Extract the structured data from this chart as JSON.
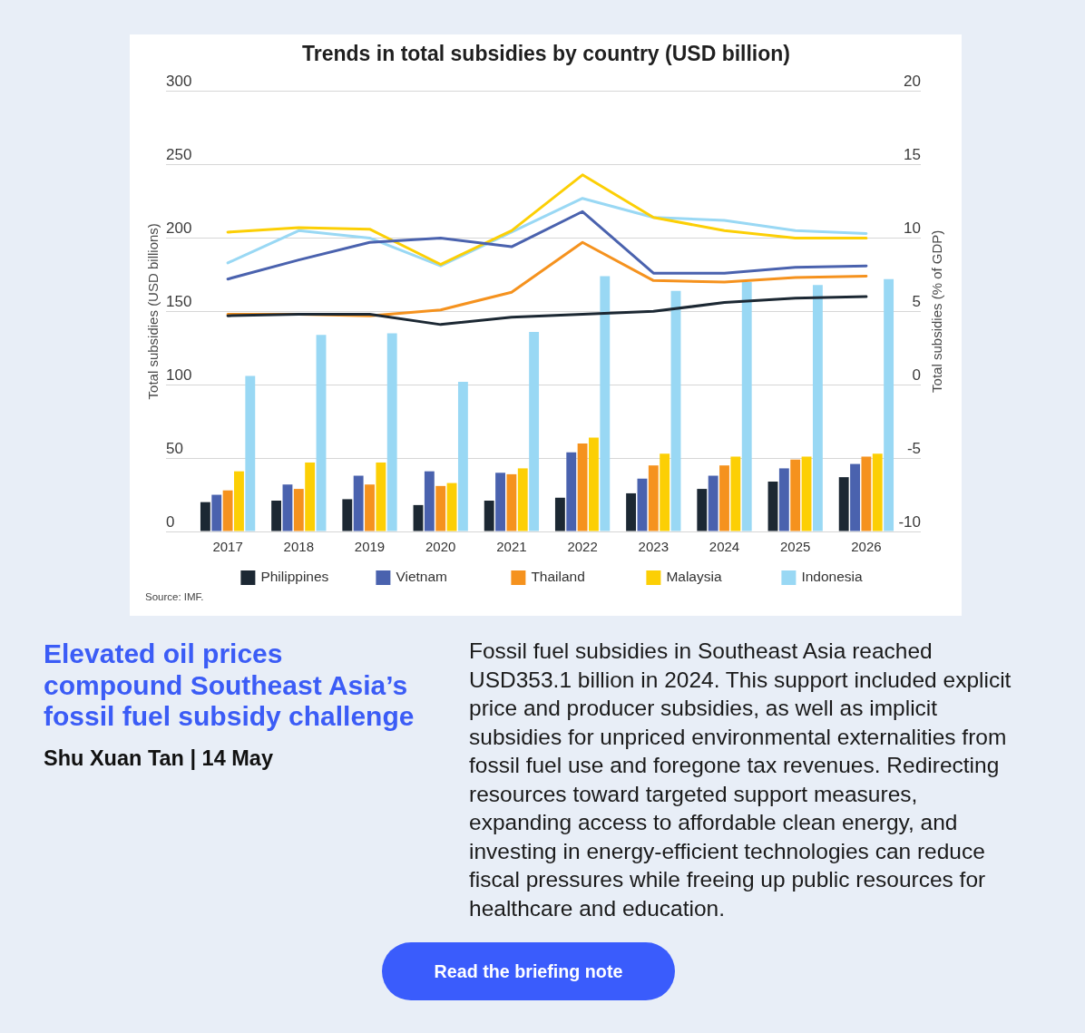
{
  "chart_data": {
    "type": "bar",
    "title": "Trends in total subsidies by country (USD billion)",
    "ylabel": "Total subsidies (USD billions)",
    "y2label": "Total subsidies (% of GDP)",
    "categories": [
      "2017",
      "2018",
      "2019",
      "2020",
      "2021",
      "2022",
      "2023",
      "2024",
      "2025",
      "2026"
    ],
    "series": [
      {
        "name": "Philippines",
        "color": "#1c2833",
        "values": [
          20,
          21,
          22,
          18,
          21,
          23,
          26,
          29,
          34,
          37
        ]
      },
      {
        "name": "Vietnam",
        "color": "#4a62ae",
        "values": [
          25,
          32,
          38,
          41,
          40,
          54,
          36,
          38,
          43,
          46
        ]
      },
      {
        "name": "Thailand",
        "color": "#f5921e",
        "values": [
          28,
          29,
          32,
          31,
          39,
          60,
          45,
          45,
          49,
          51
        ]
      },
      {
        "name": "Malaysia",
        "color": "#fccf05",
        "values": [
          41,
          47,
          47,
          33,
          43,
          64,
          53,
          51,
          51,
          53
        ]
      },
      {
        "name": "Indonesia",
        "color": "#99d8f4",
        "values": [
          106,
          134,
          135,
          102,
          136,
          174,
          164,
          170,
          168,
          172
        ]
      },
      {
        "type": "line",
        "axis": "y2",
        "color": "#1c2833",
        "values": [
          4.7,
          4.8,
          4.8,
          4.1,
          4.6,
          4.8,
          5.0,
          5.6,
          5.9,
          6.0
        ]
      },
      {
        "type": "line",
        "axis": "y2",
        "color": "#4a62ae",
        "values": [
          7.2,
          8.5,
          9.7,
          10.0,
          9.4,
          11.8,
          7.6,
          7.6,
          8.0,
          8.1
        ]
      },
      {
        "type": "line",
        "axis": "y2",
        "color": "#f5921e",
        "values": [
          4.8,
          4.8,
          4.7,
          5.1,
          6.3,
          9.7,
          7.1,
          7.0,
          7.3,
          7.4
        ]
      },
      {
        "type": "line",
        "axis": "y2",
        "color": "#fccf05",
        "values": [
          10.4,
          10.7,
          10.6,
          8.2,
          10.5,
          14.3,
          11.4,
          10.5,
          10.0,
          10.0
        ]
      },
      {
        "type": "line",
        "axis": "y2",
        "color": "#99d8f4",
        "values": [
          8.3,
          10.5,
          10.0,
          8.1,
          10.4,
          12.7,
          11.4,
          11.2,
          10.5,
          10.3
        ]
      }
    ],
    "ylim": [
      0,
      300
    ],
    "yticks": [
      0,
      50,
      100,
      150,
      200,
      250,
      300
    ],
    "y2lim": [
      -10,
      20
    ],
    "y2ticks": [
      -10,
      -5,
      0,
      5,
      10,
      15,
      20
    ],
    "grid": "y",
    "legend": "bottom",
    "annotations": [
      "Source: IMF.",
      "Elevated oil prices compound Southeast Asia’s fossil fuel subsidy challenge",
      "Shu Xuan Tan | 14 May",
      "Fossil fuel subsidies in Southeast Asia reached USD353.1 billion in 2024. This support included explicit price and producer subsidies, as well as implicit subsidies for unpriced environmental externalities from fossil fuel use and foregone tax revenues. Redirecting resources toward targeted support measures, expanding access to affordable clean energy, and investing in energy-efficient technologies can reduce fiscal pressures while freeing up public resources for healthcare and education.",
      "Read the briefing note"
    ]
  }
}
